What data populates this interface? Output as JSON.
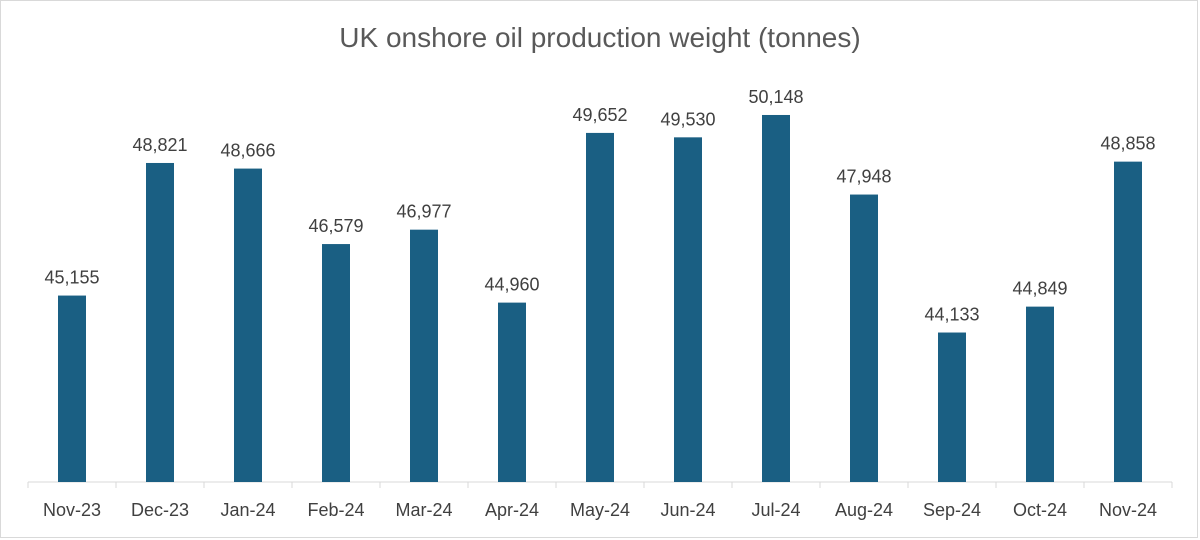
{
  "chart_data": {
    "type": "bar",
    "title": "UK onshore oil production weight (tonnes)",
    "categories": [
      "Nov-23",
      "Dec-23",
      "Jan-24",
      "Feb-24",
      "Mar-24",
      "Apr-24",
      "May-24",
      "Jun-24",
      "Jul-24",
      "Aug-24",
      "Sep-24",
      "Oct-24",
      "Nov-24"
    ],
    "values": [
      45155,
      48821,
      48666,
      46579,
      46977,
      44960,
      49652,
      49530,
      50148,
      47948,
      44133,
      44849,
      48858
    ],
    "data_labels": [
      "45,155",
      "48,821",
      "48,666",
      "46,579",
      "46,977",
      "44,960",
      "49,652",
      "49,530",
      "50,148",
      "47,948",
      "44,133",
      "44,849",
      "48,858"
    ],
    "ylim": [
      40000,
      52000
    ],
    "bar_color": "#1a5f83",
    "grid": false,
    "legend": "none"
  }
}
